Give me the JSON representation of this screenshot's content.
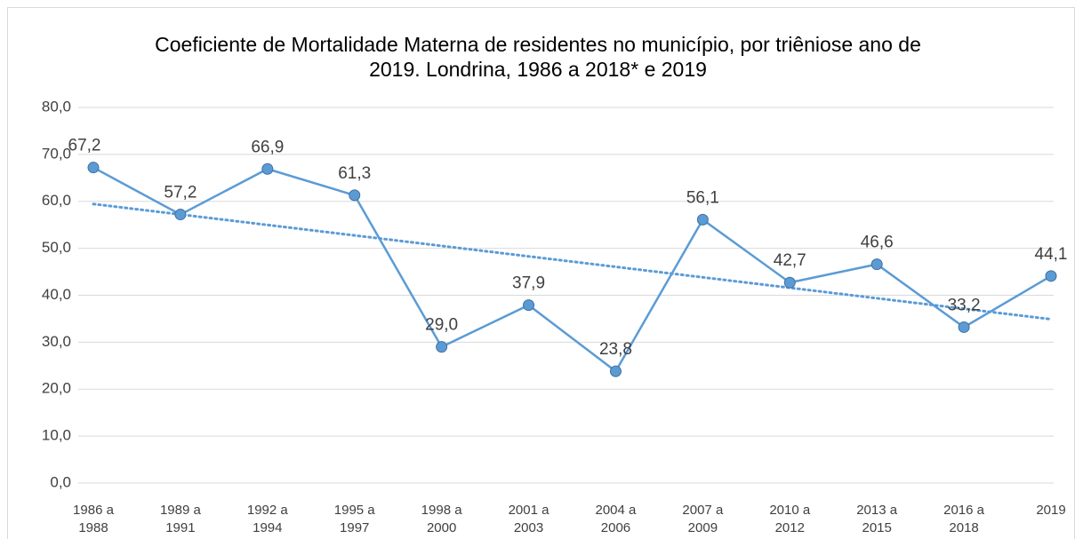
{
  "chart_data": {
    "type": "line",
    "title": "Coeficiente de Mortalidade Materna de residentes no município, por triêniose ano de 2019. Londrina, 1986 a 2018* e 2019",
    "categories": [
      "1986 a 1988",
      "1989 a 1991",
      "1992 a 1994",
      "1995 a 1997",
      "1998 a 2000",
      "2001 a 2003",
      "2004 a 2006",
      "2007 a 2009",
      "2010 a 2012",
      "2013 a 2015",
      "2016 a 2018",
      "2019"
    ],
    "values": [
      67.2,
      57.2,
      66.9,
      61.3,
      29.0,
      37.9,
      23.8,
      56.1,
      42.7,
      46.6,
      33.2,
      44.1
    ],
    "value_labels": [
      "67,2",
      "57,2",
      "66,9",
      "61,3",
      "29,0",
      "37,9",
      "23,8",
      "56,1",
      "42,7",
      "46,6",
      "33,2",
      "44,1"
    ],
    "color": "#5b9bd5",
    "trendline": "linear",
    "ylim": [
      0,
      80
    ],
    "yticks": [
      {
        "value": 0,
        "label": "0,0"
      },
      {
        "value": 10,
        "label": "10,0"
      },
      {
        "value": 20,
        "label": "20,0"
      },
      {
        "value": 30,
        "label": "30,0"
      },
      {
        "value": 40,
        "label": "40,0"
      },
      {
        "value": 50,
        "label": "50,0"
      },
      {
        "value": 60,
        "label": "60,0"
      },
      {
        "value": 70,
        "label": "70,0"
      },
      {
        "value": 80,
        "label": "80,0"
      }
    ],
    "grid": true
  }
}
